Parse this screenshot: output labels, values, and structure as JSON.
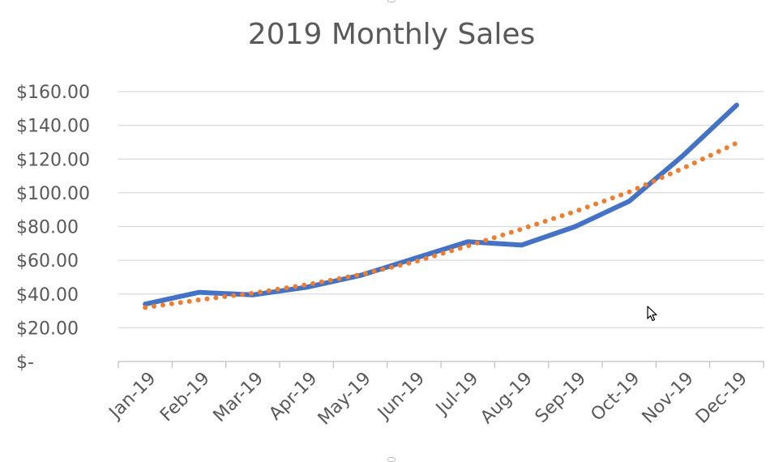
{
  "chart_data": {
    "type": "line",
    "title": "2019 Monthly Sales",
    "categories": [
      "Jan-19",
      "Feb-19",
      "Mar-19",
      "Apr-19",
      "May-19",
      "Jun-19",
      "Jul-19",
      "Aug-19",
      "Sep-19",
      "Oct-19",
      "Nov-19",
      "Dec-19"
    ],
    "y_tick_labels": [
      "$-",
      "$20.00",
      "$40.00",
      "$60.00",
      "$80.00",
      "$100.00",
      "$120.00",
      "$140.00",
      "$160.00"
    ],
    "ylim": [
      0,
      160
    ],
    "grid": true,
    "series": [
      {
        "style": "solid",
        "color": "#4472C4",
        "values": [
          34,
          41,
          39.5,
          44,
          51,
          61,
          71,
          69,
          80,
          95,
          122,
          152
        ]
      },
      {
        "style": "dotted",
        "color": "#ED7D31",
        "kind": "trendline",
        "values": [
          32,
          36.5,
          40.5,
          45.5,
          51.5,
          59,
          68.5,
          78.5,
          89,
          100.5,
          114.5,
          129.5
        ]
      }
    ]
  },
  "colors": {
    "gridline": "#d9d9d9",
    "axis_line": "#bfbfbf",
    "tick_text": "#595959",
    "title_text": "#595959"
  },
  "icons": {
    "cursor": "mouse-pointer-icon"
  }
}
